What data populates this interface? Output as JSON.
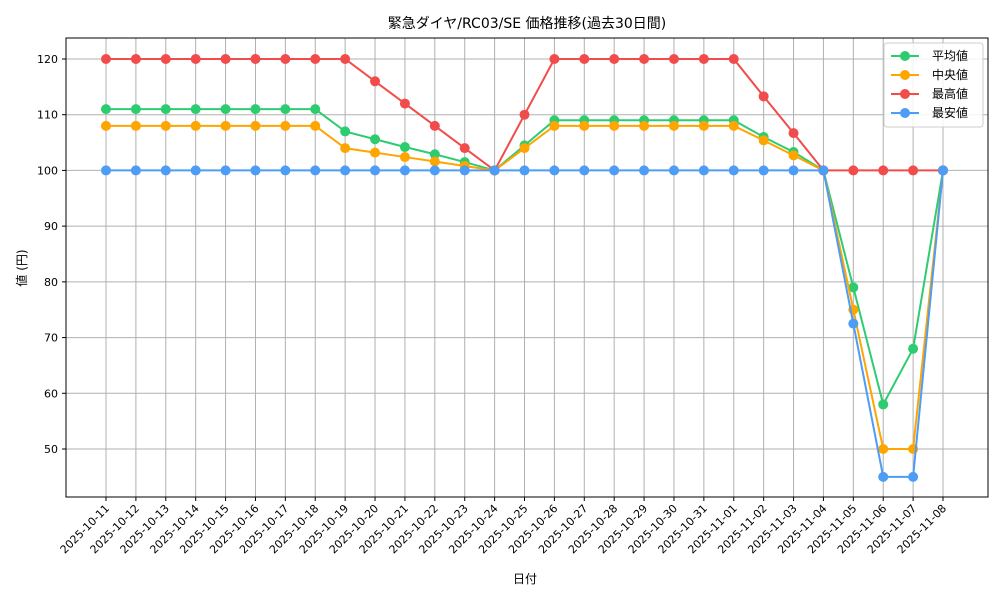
{
  "chart_data": {
    "type": "line",
    "title": "緊急ダイヤ/RC03/SE 価格推移(過去30日間)",
    "xlabel": "日付",
    "ylabel": "値 (円)",
    "ylim": [
      41,
      124
    ],
    "yticks": [
      50,
      60,
      70,
      80,
      90,
      100,
      110,
      120
    ],
    "grid": true,
    "legend_position": "upper right",
    "categories": [
      "2025-10-11",
      "2025-10-12",
      "2025-10-13",
      "2025-10-14",
      "2025-10-15",
      "2025-10-16",
      "2025-10-17",
      "2025-10-18",
      "2025-10-19",
      "2025-10-20",
      "2025-10-21",
      "2025-10-22",
      "2025-10-23",
      "2025-10-24",
      "2025-10-25",
      "2025-10-26",
      "2025-10-27",
      "2025-10-28",
      "2025-10-29",
      "2025-10-30",
      "2025-10-31",
      "2025-11-01",
      "2025-11-02",
      "2025-11-03",
      "2025-11-04",
      "2025-11-05",
      "2025-11-06",
      "2025-11-07",
      "2025-11-08"
    ],
    "series": [
      {
        "name": "平均値",
        "color": "#2ecc71",
        "values": [
          111,
          111,
          111,
          111,
          111,
          111,
          111,
          111,
          107,
          105.6,
          104.2,
          102.9,
          101.5,
          100,
          104.5,
          109,
          109,
          109,
          109,
          109,
          109,
          109,
          106,
          103.3,
          100,
          79,
          58,
          68,
          100
        ]
      },
      {
        "name": "中央値",
        "color": "#ffa500",
        "values": [
          108,
          108,
          108,
          108,
          108,
          108,
          108,
          108,
          104,
          103.2,
          102.4,
          101.6,
          100.8,
          100,
          104,
          108,
          108,
          108,
          108,
          108,
          108,
          108,
          105.4,
          102.7,
          100,
          75,
          50,
          50,
          100
        ]
      },
      {
        "name": "最高値",
        "color": "#f24b4b",
        "values": [
          120,
          120,
          120,
          120,
          120,
          120,
          120,
          120,
          120,
          116,
          112,
          108,
          104,
          100,
          110,
          120,
          120,
          120,
          120,
          120,
          120,
          120,
          113.3,
          106.7,
          100,
          100,
          100,
          100,
          100
        ]
      },
      {
        "name": "最安値",
        "color": "#4d9cf5",
        "values": [
          100,
          100,
          100,
          100,
          100,
          100,
          100,
          100,
          100,
          100,
          100,
          100,
          100,
          100,
          100,
          100,
          100,
          100,
          100,
          100,
          100,
          100,
          100,
          100,
          100,
          72.5,
          45,
          45,
          100
        ]
      }
    ]
  }
}
